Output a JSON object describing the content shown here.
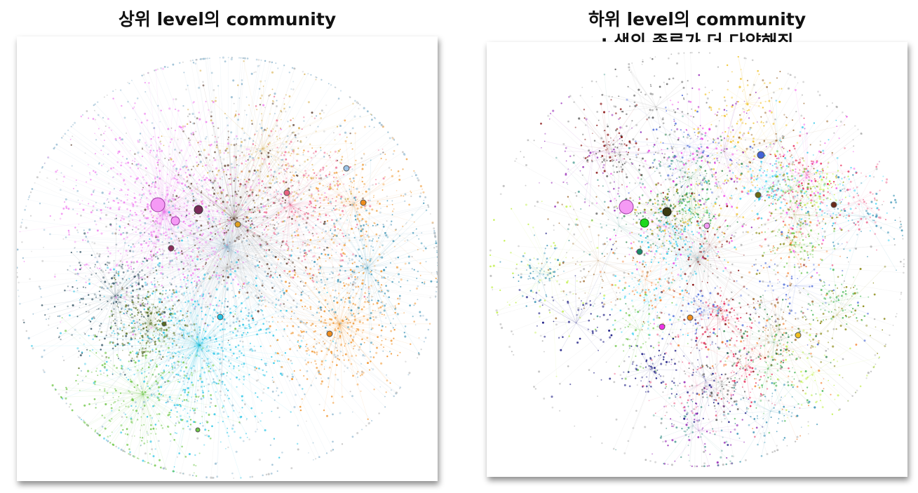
{
  "panels": [
    {
      "title": [
        "상위 level의 community"
      ]
    },
    {
      "title": [
        "하위 level의 community",
        ": 색의 종류가 더 다양해짐"
      ]
    }
  ]
}
